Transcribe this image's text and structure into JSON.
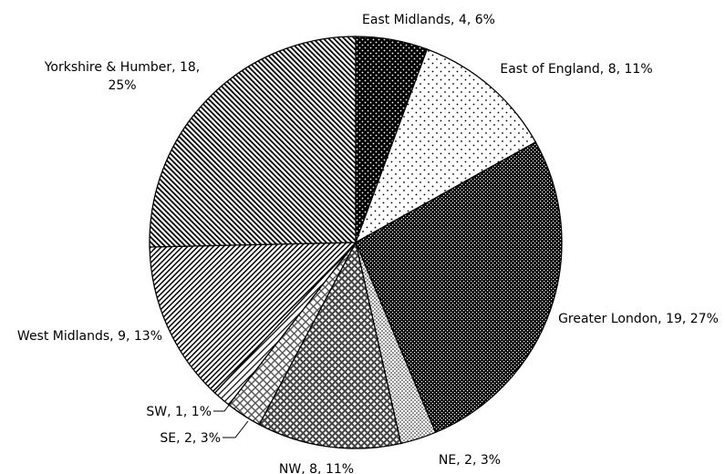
{
  "chart_data": {
    "type": "pie",
    "title": "",
    "slices": [
      {
        "name": "East Midlands",
        "value": 4,
        "percent": "6%",
        "label": "East Midlands, 4, 6%",
        "pattern": "dots-white-on-black"
      },
      {
        "name": "East of England",
        "value": 8,
        "percent": "11%",
        "label": "East of England, 8, 11%",
        "pattern": "dots-sparse"
      },
      {
        "name": "Greater London",
        "value": 19,
        "percent": "27%",
        "label": "Greater London, 19, 27%",
        "pattern": "checker-dense"
      },
      {
        "name": "NE",
        "value": 2,
        "percent": "3%",
        "label": "NE, 2, 3%",
        "pattern": "dots-dense"
      },
      {
        "name": "NW",
        "value": 8,
        "percent": "11%",
        "label": "NW, 8, 11%",
        "pattern": "crosshatch-dark"
      },
      {
        "name": "SE",
        "value": 2,
        "percent": "3%",
        "label": "SE, 2, 3%",
        "pattern": "crosshatch-light"
      },
      {
        "name": "SW",
        "value": 1,
        "percent": "1%",
        "label": "SW, 1, 1%",
        "pattern": "diagonal-light"
      },
      {
        "name": "West Midlands",
        "value": 9,
        "percent": "13%",
        "label": "West Midlands, 9, 13%",
        "pattern": "diagonal-up"
      },
      {
        "name": "Yorkshire & Humber",
        "value": 18,
        "percent": "25%",
        "label_lines": [
          "Yorkshire & Humber, 18,",
          "25%"
        ],
        "pattern": "diagonal-down"
      }
    ],
    "legend": "none",
    "colors": {
      "stroke": "#000000",
      "fill": "#000000",
      "background": "#ffffff"
    }
  }
}
